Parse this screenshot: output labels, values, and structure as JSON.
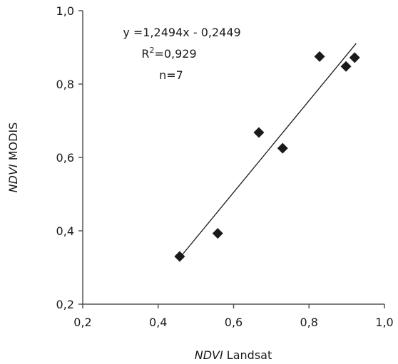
{
  "chart_data": {
    "type": "scatter",
    "x_axis_label": {
      "italic": "NDVI",
      "plain": " Landsat"
    },
    "y_axis_label": {
      "italic": "NDVI",
      "plain": " MODIS"
    },
    "xlim": [
      0.2,
      1.0
    ],
    "ylim": [
      0.2,
      1.0
    ],
    "x_ticks": [
      "0,2",
      "0,4",
      "0,6",
      "0,8",
      "1,0"
    ],
    "x_tick_values": [
      0.2,
      0.4,
      0.6,
      0.8,
      1.0
    ],
    "y_ticks": [
      "0,2",
      "0,4",
      "0,6",
      "0,8",
      "1,0"
    ],
    "y_tick_values": [
      0.2,
      0.4,
      0.6,
      0.8,
      1.0
    ],
    "grid": false,
    "marker": "diamond",
    "points": [
      {
        "x": 0.457,
        "y": 0.33
      },
      {
        "x": 0.558,
        "y": 0.393
      },
      {
        "x": 0.667,
        "y": 0.668
      },
      {
        "x": 0.73,
        "y": 0.625
      },
      {
        "x": 0.828,
        "y": 0.875
      },
      {
        "x": 0.898,
        "y": 0.848
      },
      {
        "x": 0.921,
        "y": 0.872
      }
    ],
    "trendline": {
      "slope": 1.2494,
      "intercept": -0.2449,
      "x_range": [
        0.457,
        0.925
      ]
    },
    "annotations": {
      "equation": "y =1,2494x - 0,2449",
      "r2_prefix": "R",
      "r2_superscript": "2",
      "r2_value": "=0,929",
      "n": "n=7"
    },
    "colors": {
      "marker": "#1a1a1a",
      "axis": "#555555",
      "trendline": "#1a1a1a"
    }
  }
}
